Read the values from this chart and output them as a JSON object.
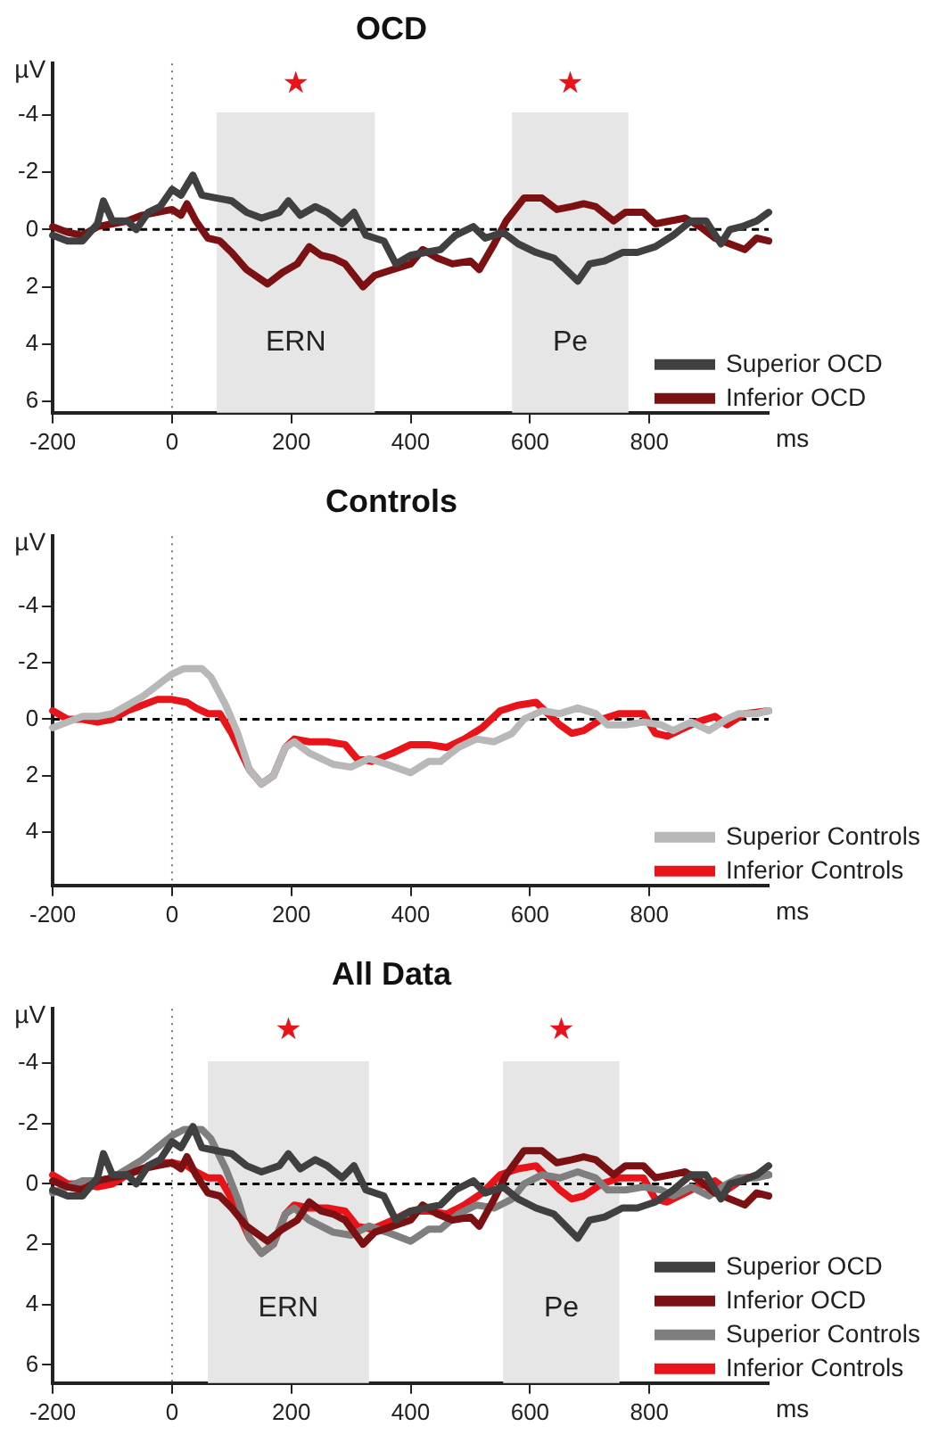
{
  "chart_data": [
    {
      "type": "line",
      "title": "OCD",
      "xlabel": "ms",
      "ylabel": "µV",
      "xlim": [
        -200,
        1000
      ],
      "xticks": [
        -200,
        0,
        200,
        400,
        600,
        800
      ],
      "ylim": [
        6.4,
        -5.8
      ],
      "yticks": [
        -4,
        -2,
        0,
        2,
        4,
        6
      ],
      "grid": false,
      "legend": "bottom right",
      "marker": "none",
      "line_style": "solid",
      "bands": [
        {
          "axis": "x",
          "from": 75,
          "to": 340,
          "label": "ERN",
          "color": "#e6e6e6"
        },
        {
          "axis": "x",
          "from": 570,
          "to": 765,
          "label": "Pe",
          "color": "#e6e6e6"
        }
      ],
      "ref_lines": [
        {
          "axis": "y",
          "value": 0,
          "color": "#000000",
          "line_style": "dashed"
        },
        {
          "axis": "x",
          "value": 0,
          "color": "#777777",
          "line_style": "dotted"
        }
      ],
      "annotations": [
        "★",
        "★"
      ],
      "series": [
        {
          "name": "Superior OCD",
          "color": "#404040",
          "x": [
            -200,
            -175,
            -150,
            -125,
            -115,
            -100,
            -75,
            -60,
            -40,
            -20,
            0,
            15,
            35,
            50,
            75,
            100,
            125,
            150,
            180,
            195,
            215,
            240,
            260,
            285,
            305,
            325,
            355,
            375,
            400,
            425,
            450,
            475,
            505,
            525,
            555,
            580,
            610,
            640,
            670,
            680,
            700,
            725,
            755,
            780,
            810,
            840,
            870,
            895,
            920,
            935,
            955,
            980,
            1000
          ],
          "values": [
            0.2,
            0.4,
            0.4,
            -0.2,
            -1.0,
            -0.3,
            -0.3,
            0,
            -0.6,
            -0.8,
            -1.4,
            -1.2,
            -1.9,
            -1.2,
            -1.1,
            -1.0,
            -0.6,
            -0.4,
            -0.6,
            -1.0,
            -0.5,
            -0.8,
            -0.6,
            -0.2,
            -0.6,
            0.2,
            0.4,
            1.2,
            0.9,
            0.8,
            0.7,
            0.2,
            -0.1,
            0.3,
            0.1,
            0.5,
            0.8,
            1.0,
            1.6,
            1.8,
            1.2,
            1.1,
            0.8,
            0.8,
            0.6,
            0.2,
            -0.3,
            -0.3,
            0.5,
            0.0,
            -0.1,
            -0.3,
            -0.6
          ]
        },
        {
          "name": "Inferior OCD",
          "color": "#7b1113",
          "x": [
            -200,
            -175,
            -150,
            -125,
            -100,
            -75,
            -50,
            -25,
            0,
            15,
            25,
            40,
            60,
            80,
            100,
            125,
            160,
            185,
            210,
            230,
            250,
            270,
            290,
            320,
            340,
            370,
            400,
            420,
            445,
            470,
            500,
            515,
            540,
            560,
            590,
            620,
            645,
            670,
            690,
            710,
            740,
            760,
            790,
            810,
            835,
            860,
            885,
            910,
            935,
            960,
            980,
            1000
          ],
          "values": [
            -0.1,
            0.1,
            0.2,
            -0.1,
            -0.2,
            -0.3,
            -0.5,
            -0.6,
            -0.7,
            -0.5,
            -0.9,
            -0.3,
            0.3,
            0.4,
            0.8,
            1.4,
            1.9,
            1.5,
            1.2,
            0.6,
            0.9,
            1.0,
            1.2,
            2.0,
            1.6,
            1.4,
            1.2,
            0.7,
            1.0,
            1.2,
            1.1,
            1.4,
            0.5,
            -0.3,
            -1.1,
            -1.1,
            -0.7,
            -0.8,
            -0.9,
            -0.8,
            -0.3,
            -0.6,
            -0.6,
            -0.2,
            -0.3,
            -0.4,
            -0.1,
            0.3,
            0.5,
            0.7,
            0.3,
            0.4
          ]
        }
      ]
    },
    {
      "type": "line",
      "title": "Controls",
      "xlabel": "ms",
      "ylabel": "µV",
      "xlim": [
        -200,
        1000
      ],
      "xticks": [
        -200,
        0,
        200,
        400,
        600,
        800
      ],
      "ylim": [
        5.9,
        -6.5
      ],
      "yticks": [
        -4,
        -2,
        0,
        2,
        4
      ],
      "grid": false,
      "legend": "bottom right",
      "marker": "none",
      "line_style": "solid",
      "ref_lines": [
        {
          "axis": "y",
          "value": 0,
          "color": "#000000",
          "line_style": "dashed"
        },
        {
          "axis": "x",
          "value": 0,
          "color": "#777777",
          "line_style": "dotted"
        }
      ],
      "series": [
        {
          "name": "Superior Controls",
          "color": "#b8b8b8",
          "x": [
            -200,
            -175,
            -150,
            -125,
            -100,
            -75,
            -50,
            -25,
            0,
            20,
            50,
            65,
            90,
            110,
            130,
            150,
            170,
            190,
            205,
            230,
            270,
            300,
            330,
            360,
            400,
            430,
            450,
            480,
            510,
            540,
            570,
            590,
            620,
            650,
            680,
            710,
            730,
            760,
            790,
            820,
            840,
            870,
            900,
            930,
            950,
            980,
            1000
          ],
          "values": [
            0.3,
            0.1,
            -0.1,
            -0.1,
            -0.2,
            -0.5,
            -0.8,
            -1.2,
            -1.6,
            -1.8,
            -1.8,
            -1.5,
            -0.5,
            0.5,
            1.8,
            2.3,
            2.0,
            1.0,
            0.8,
            1.2,
            1.6,
            1.7,
            1.4,
            1.6,
            1.9,
            1.5,
            1.5,
            1.0,
            0.7,
            0.8,
            0.5,
            0.0,
            -0.3,
            -0.2,
            -0.4,
            -0.2,
            0.2,
            0.2,
            0.1,
            0.2,
            0.4,
            0.1,
            0.4,
            0.0,
            -0.2,
            -0.2,
            -0.3
          ]
        },
        {
          "name": "Inferior Controls",
          "color": "#e8141a",
          "x": [
            -200,
            -175,
            -150,
            -125,
            -100,
            -75,
            -50,
            -25,
            0,
            25,
            40,
            60,
            80,
            100,
            130,
            150,
            170,
            190,
            205,
            230,
            260,
            290,
            310,
            335,
            370,
            400,
            430,
            460,
            490,
            520,
            550,
            580,
            610,
            630,
            650,
            670,
            690,
            720,
            750,
            790,
            810,
            830,
            860,
            880,
            910,
            930,
            960,
            1000
          ],
          "values": [
            -0.3,
            0.0,
            0.0,
            0.1,
            0.0,
            -0.3,
            -0.5,
            -0.7,
            -0.7,
            -0.6,
            -0.4,
            -0.2,
            -0.2,
            0.5,
            1.8,
            2.3,
            2.0,
            1.0,
            0.7,
            0.8,
            0.8,
            0.9,
            1.4,
            1.5,
            1.2,
            0.9,
            0.9,
            1.0,
            0.7,
            0.3,
            -0.3,
            -0.5,
            -0.6,
            -0.2,
            0.2,
            0.5,
            0.4,
            0.0,
            -0.2,
            -0.2,
            0.5,
            0.6,
            0.3,
            0.1,
            -0.1,
            0.2,
            -0.2,
            -0.3
          ]
        }
      ]
    },
    {
      "type": "line",
      "title": "All Data",
      "xlabel": "ms",
      "ylabel": "µV",
      "xlim": [
        -200,
        1000
      ],
      "xticks": [
        -200,
        0,
        200,
        400,
        600,
        800
      ],
      "ylim": [
        6.6,
        -5.8
      ],
      "yticks": [
        -4,
        -2,
        0,
        2,
        4,
        6
      ],
      "grid": false,
      "legend": "bottom right",
      "marker": "none",
      "line_style": "solid",
      "bands": [
        {
          "axis": "x",
          "from": 60,
          "to": 330,
          "label": "ERN",
          "color": "#e6e6e6"
        },
        {
          "axis": "x",
          "from": 555,
          "to": 750,
          "label": "Pe",
          "color": "#e6e6e6"
        }
      ],
      "ref_lines": [
        {
          "axis": "y",
          "value": 0,
          "color": "#000000",
          "line_style": "dashed"
        },
        {
          "axis": "x",
          "value": 0,
          "color": "#777777",
          "line_style": "dotted"
        }
      ],
      "annotations": [
        "★",
        "★"
      ],
      "series": [
        {
          "name": "Superior OCD",
          "color": "#404040",
          "x": [
            -200,
            -175,
            -150,
            -125,
            -115,
            -100,
            -75,
            -60,
            -40,
            -20,
            0,
            15,
            35,
            50,
            75,
            100,
            125,
            150,
            180,
            195,
            215,
            240,
            260,
            285,
            305,
            325,
            355,
            375,
            400,
            425,
            450,
            475,
            505,
            525,
            555,
            580,
            610,
            640,
            670,
            680,
            700,
            725,
            755,
            780,
            810,
            840,
            870,
            895,
            920,
            935,
            955,
            980,
            1000
          ],
          "values": [
            0.2,
            0.4,
            0.4,
            -0.2,
            -1.0,
            -0.3,
            -0.3,
            0,
            -0.6,
            -0.8,
            -1.4,
            -1.2,
            -1.9,
            -1.2,
            -1.1,
            -1.0,
            -0.6,
            -0.4,
            -0.6,
            -1.0,
            -0.5,
            -0.8,
            -0.6,
            -0.2,
            -0.6,
            0.2,
            0.4,
            1.2,
            0.9,
            0.8,
            0.7,
            0.2,
            -0.1,
            0.3,
            0.1,
            0.5,
            0.8,
            1.0,
            1.6,
            1.8,
            1.2,
            1.1,
            0.8,
            0.8,
            0.6,
            0.2,
            -0.3,
            -0.3,
            0.5,
            0.0,
            -0.1,
            -0.3,
            -0.6
          ]
        },
        {
          "name": "Inferior OCD",
          "color": "#7b1113",
          "x": [
            -200,
            -175,
            -150,
            -125,
            -100,
            -75,
            -50,
            -25,
            0,
            15,
            25,
            40,
            60,
            80,
            100,
            125,
            160,
            185,
            210,
            230,
            250,
            270,
            290,
            320,
            340,
            370,
            400,
            420,
            445,
            470,
            500,
            515,
            540,
            560,
            590,
            620,
            645,
            670,
            690,
            710,
            740,
            760,
            790,
            810,
            835,
            860,
            885,
            910,
            935,
            960,
            980,
            1000
          ],
          "values": [
            -0.1,
            0.1,
            0.2,
            -0.1,
            -0.2,
            -0.3,
            -0.5,
            -0.6,
            -0.7,
            -0.5,
            -0.9,
            -0.3,
            0.3,
            0.4,
            0.8,
            1.4,
            1.9,
            1.5,
            1.2,
            0.6,
            0.9,
            1.0,
            1.2,
            2.0,
            1.6,
            1.4,
            1.2,
            0.7,
            1.0,
            1.2,
            1.1,
            1.4,
            0.5,
            -0.3,
            -1.1,
            -1.1,
            -0.7,
            -0.8,
            -0.9,
            -0.8,
            -0.3,
            -0.6,
            -0.6,
            -0.2,
            -0.3,
            -0.4,
            -0.1,
            0.3,
            0.5,
            0.7,
            0.3,
            0.4
          ]
        },
        {
          "name": "Superior Controls",
          "color": "#7f7f7f",
          "x": [
            -200,
            -175,
            -150,
            -125,
            -100,
            -75,
            -50,
            -25,
            0,
            20,
            50,
            65,
            90,
            110,
            130,
            150,
            170,
            190,
            205,
            230,
            270,
            300,
            330,
            360,
            400,
            430,
            450,
            480,
            510,
            540,
            570,
            590,
            620,
            650,
            680,
            710,
            730,
            760,
            790,
            820,
            840,
            870,
            900,
            930,
            950,
            980,
            1000
          ],
          "values": [
            0.3,
            0.1,
            -0.1,
            -0.1,
            -0.2,
            -0.5,
            -0.8,
            -1.2,
            -1.6,
            -1.8,
            -1.8,
            -1.5,
            -0.5,
            0.5,
            1.8,
            2.3,
            2.0,
            1.0,
            0.8,
            1.2,
            1.6,
            1.7,
            1.4,
            1.6,
            1.9,
            1.5,
            1.5,
            1.0,
            0.7,
            0.8,
            0.5,
            0.0,
            -0.3,
            -0.2,
            -0.4,
            -0.2,
            0.2,
            0.2,
            0.1,
            0.2,
            0.4,
            0.1,
            0.4,
            0.0,
            -0.2,
            -0.2,
            -0.3
          ]
        },
        {
          "name": "Inferior Controls",
          "color": "#e8141a",
          "x": [
            -200,
            -175,
            -150,
            -125,
            -100,
            -75,
            -50,
            -25,
            0,
            25,
            40,
            60,
            80,
            100,
            130,
            150,
            170,
            190,
            205,
            230,
            260,
            290,
            310,
            335,
            370,
            400,
            430,
            460,
            490,
            520,
            550,
            580,
            610,
            630,
            650,
            670,
            690,
            720,
            750,
            790,
            810,
            830,
            860,
            880,
            910,
            930,
            960,
            1000
          ],
          "values": [
            -0.3,
            0.0,
            0.0,
            0.1,
            0.0,
            -0.3,
            -0.5,
            -0.7,
            -0.7,
            -0.6,
            -0.4,
            -0.2,
            -0.2,
            0.5,
            1.8,
            2.3,
            2.0,
            1.0,
            0.7,
            0.8,
            0.8,
            0.9,
            1.4,
            1.5,
            1.2,
            0.9,
            0.9,
            1.0,
            0.7,
            0.3,
            -0.3,
            -0.5,
            -0.6,
            -0.2,
            0.2,
            0.5,
            0.4,
            0.0,
            -0.2,
            -0.2,
            0.5,
            0.6,
            0.3,
            0.1,
            -0.1,
            0.2,
            -0.2,
            -0.3
          ]
        }
      ]
    }
  ]
}
